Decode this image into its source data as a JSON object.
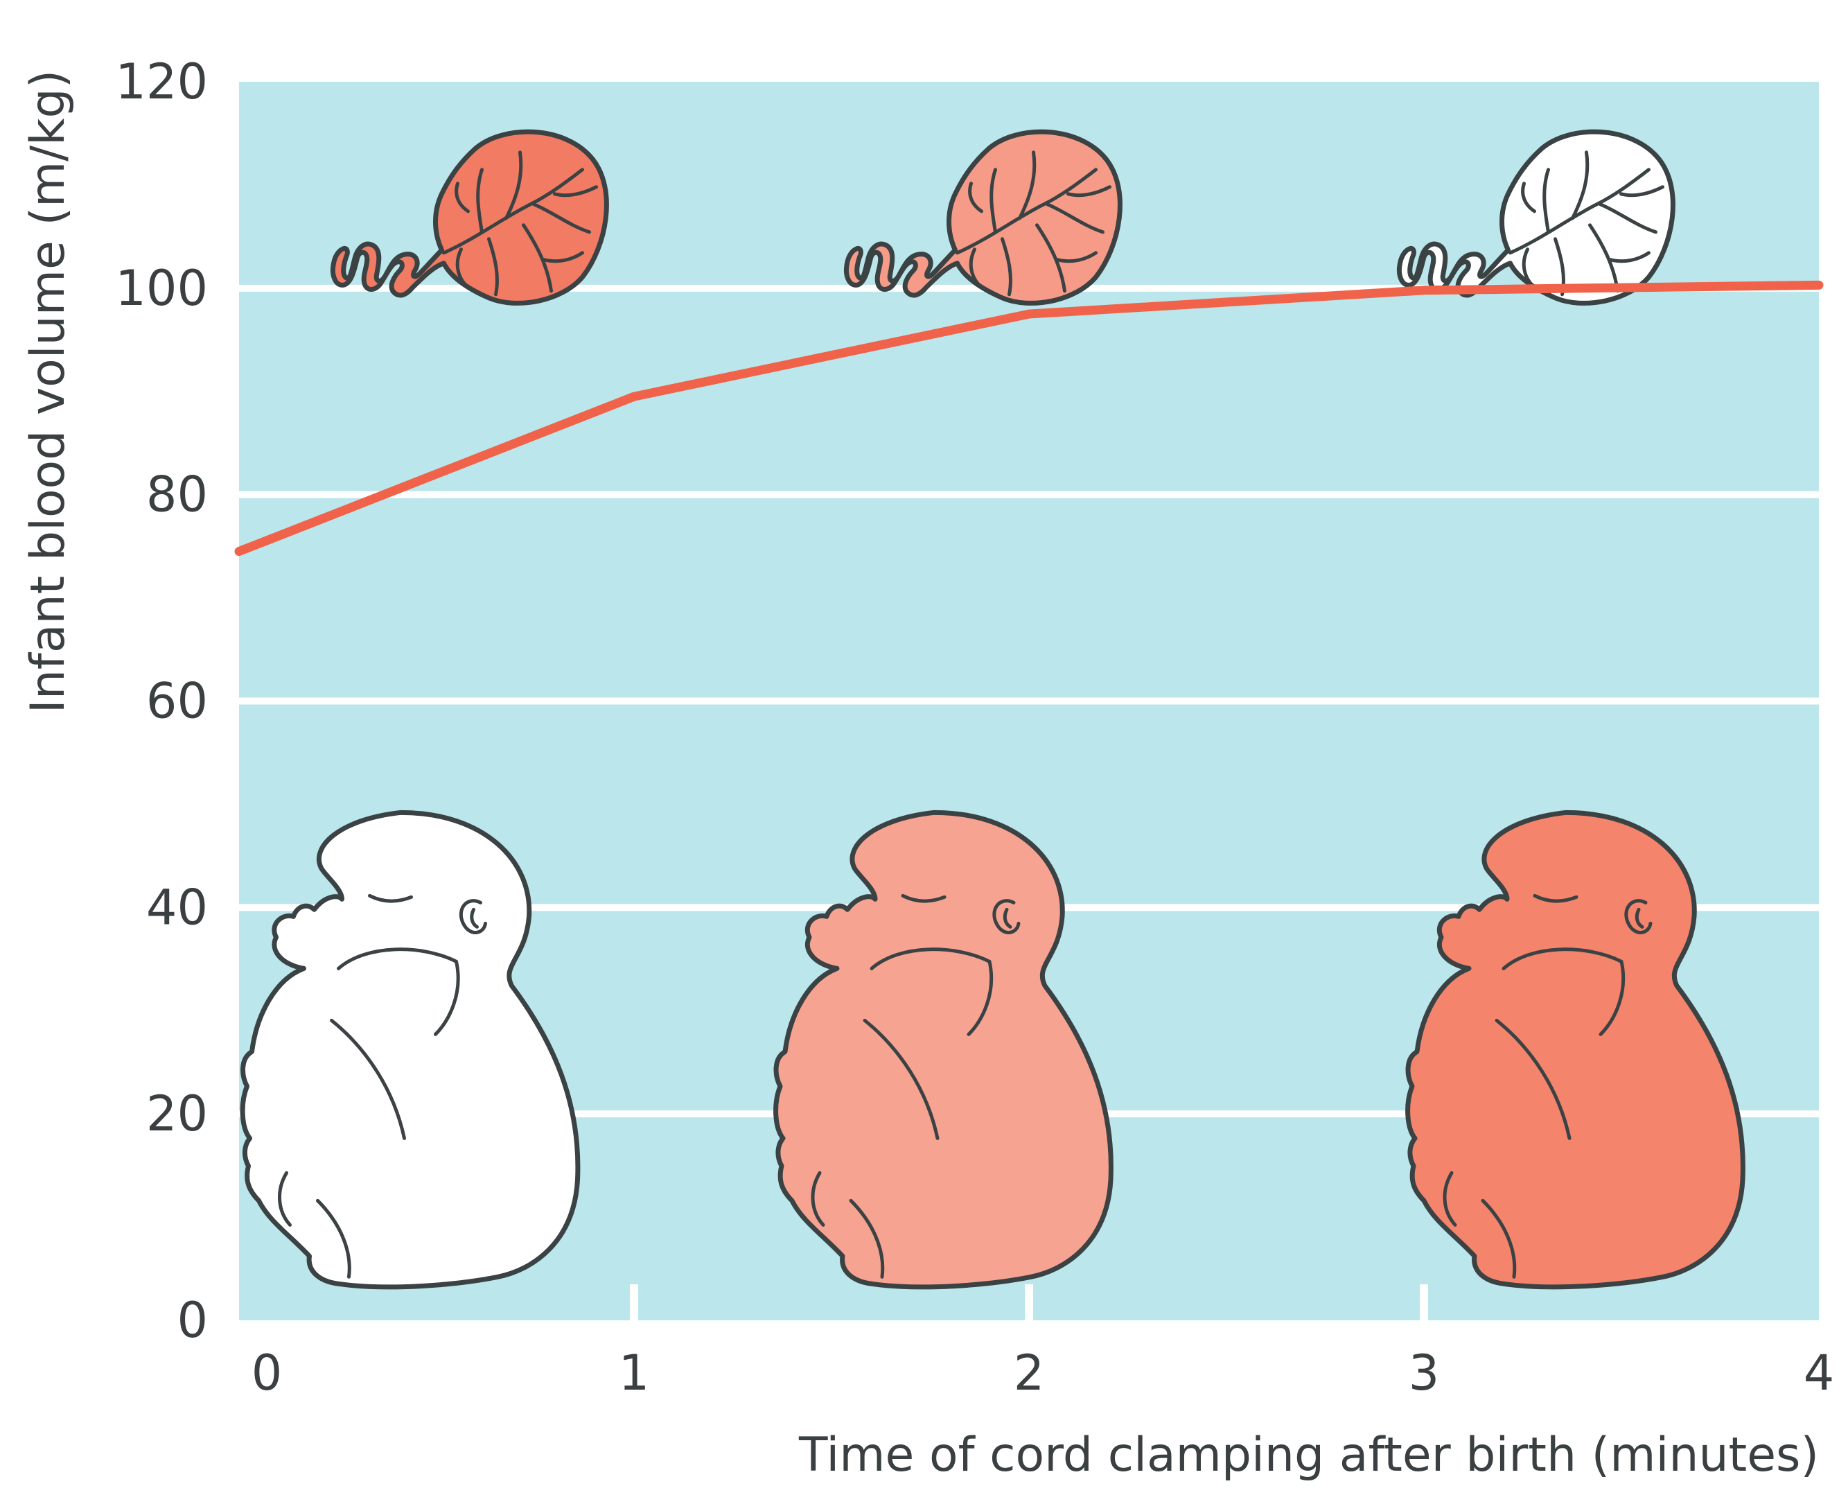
{
  "chart_data": {
    "type": "line",
    "title": "",
    "xlabel": "Time of cord clamping after birth (minutes)",
    "ylabel": "Infant blood volume (m/kg)",
    "xlim": [
      0,
      4
    ],
    "ylim": [
      0,
      120
    ],
    "x_ticks": [
      "0",
      "1",
      "2",
      "3",
      "4"
    ],
    "y_ticks": [
      "0",
      "20",
      "40",
      "60",
      "80",
      "100",
      "120"
    ],
    "grid": "horizontal",
    "series": [
      {
        "x": [
          0,
          1,
          2,
          3,
          4
        ],
        "values": [
          74.5,
          89.5,
          97.5,
          99.8,
          100.3
        ]
      }
    ],
    "illustrations": {
      "placenta_fills": [
        "#f27b63",
        "#f59b87",
        "#ffffff"
      ],
      "baby_fills": [
        "#ffffff",
        "#f7a391",
        "#f5846c"
      ]
    },
    "colors": {
      "background": "#bbe6eb",
      "grid": "#ffffff",
      "line": "#f0634a",
      "text": "#3a3f41"
    }
  }
}
